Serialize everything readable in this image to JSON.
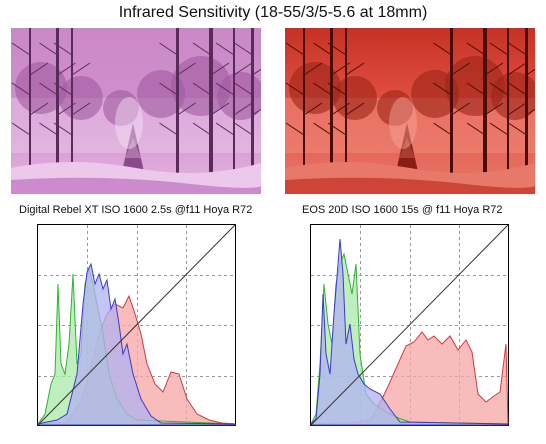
{
  "title": "Infrared Sensitivity  (18-55/3/5-5.6 at 18mm)",
  "photos": [
    {
      "caption": "Digital Rebel XT ISO 1600  2.5s @f11 Hoya R72",
      "tint": "magenta"
    },
    {
      "caption": "EOS 20D ISO 1600  15s @ f11  Hoya R72",
      "tint": "red"
    }
  ],
  "histograms": {
    "channels": [
      {
        "name": "red",
        "fill": "#f6a5a5",
        "stroke": "#d63838"
      },
      {
        "name": "green",
        "fill": "#a9e8a9",
        "stroke": "#2fb32f"
      },
      {
        "name": "blue",
        "fill": "#b2b2f2",
        "stroke": "#3c3cc8"
      }
    ],
    "grid": "dashed-4x4",
    "diagonal": true
  },
  "colors": {
    "magenta_sky": "#d38fcf",
    "magenta_ground": "#c77bc7",
    "red_sky": "#e8584a",
    "red_ground": "#c7382c"
  }
}
